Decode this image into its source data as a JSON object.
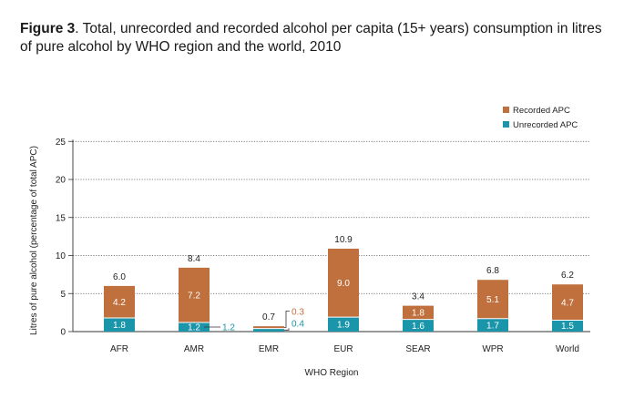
{
  "title": {
    "lead": "Figure 3",
    "text": ". Total, unrecorded and recorded alcohol per capita (15+ years) consumption in litres of pure alcohol by WHO region and the world, 2010"
  },
  "colors": {
    "recorded": "#c0703c",
    "unrecorded": "#1b95aa",
    "grid": "#555555"
  },
  "chart_data": {
    "type": "bar",
    "stacked": true,
    "title": "Total, unrecorded and recorded alcohol per capita (15+ years) consumption in litres of pure alcohol by WHO region and the world, 2010",
    "xlabel": "WHO Region",
    "ylabel": "Litres of pure alcohol (percentage of total APC)",
    "ylim": [
      0,
      25
    ],
    "yticks": [
      0,
      5,
      10,
      15,
      20,
      25
    ],
    "grid": true,
    "legend_position": "top-right",
    "categories": [
      "AFR",
      "AMR",
      "EMR",
      "EUR",
      "SEAR",
      "WPR",
      "World"
    ],
    "series": [
      {
        "name": "Unrecorded APC",
        "values": [
          1.8,
          1.2,
          0.4,
          1.9,
          1.6,
          1.7,
          1.5
        ],
        "labels": [
          "1.8",
          "1.2",
          "0.4",
          "1.9",
          "1.6",
          "1.7",
          "1.5"
        ]
      },
      {
        "name": "Recorded APC",
        "values": [
          4.2,
          7.2,
          0.3,
          9.0,
          1.8,
          5.1,
          4.7
        ],
        "labels": [
          "4.2",
          "7.2",
          "0.3",
          "9.0",
          "1.8",
          "5.1",
          "4.7"
        ]
      }
    ],
    "totals": [
      6.0,
      8.4,
      0.7,
      10.9,
      3.4,
      6.8,
      6.2
    ],
    "total_labels": [
      "6.0",
      "8.4",
      "0.7",
      "10.9",
      "3.4",
      "6.8",
      "6.2"
    ],
    "legend": [
      "Recorded APC",
      "Unrecorded APC"
    ]
  }
}
